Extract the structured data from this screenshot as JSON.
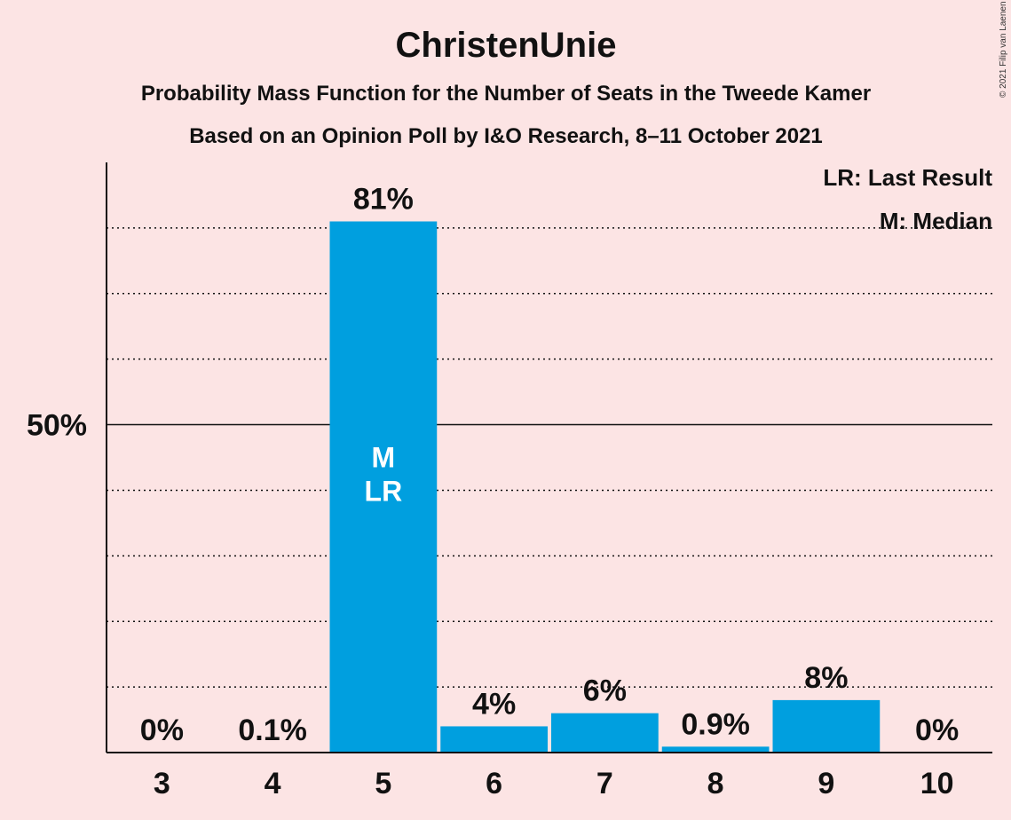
{
  "chart_data": {
    "type": "bar",
    "title": "ChristenUnie",
    "subtitle1": "Probability Mass Function for the Number of Seats in the Tweede Kamer",
    "subtitle2": "Based on an Opinion Poll by I&O Research, 8–11 October 2021",
    "copyright": "© 2021 Filip van Laenen",
    "categories": [
      "3",
      "4",
      "5",
      "6",
      "7",
      "8",
      "9",
      "10"
    ],
    "values": [
      0,
      0.1,
      81,
      4,
      6,
      0.9,
      8,
      0
    ],
    "value_labels": [
      "0%",
      "0.1%",
      "81%",
      "4%",
      "6%",
      "0.9%",
      "8%",
      "0%"
    ],
    "ylim": [
      0,
      90
    ],
    "y_tick_label": "50%",
    "y_tick_value": 50,
    "gridlines": [
      10,
      20,
      30,
      40,
      60,
      70,
      80
    ],
    "median_category": "5",
    "last_result_category": "5",
    "median_marker": "M",
    "last_result_marker": "LR",
    "legend": [
      "LR: Last Result",
      "M: Median"
    ],
    "bar_color": "#009FDF"
  }
}
